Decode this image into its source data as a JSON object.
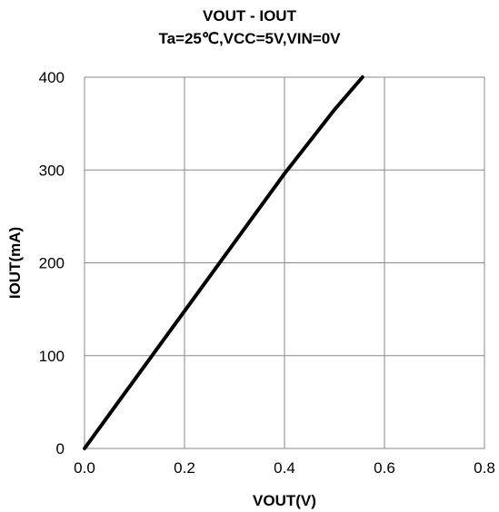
{
  "chart_data": {
    "type": "line",
    "title": "VOUT - IOUT",
    "subtitle": "Ta=25℃,VCC=5V,VIN=0V",
    "xlabel": "VOUT(V)",
    "ylabel": "IOUT(mA)",
    "xlim": [
      0,
      0.8
    ],
    "ylim": [
      0,
      400
    ],
    "xticks": [
      "0.0",
      "0.2",
      "0.4",
      "0.6",
      "0.8"
    ],
    "yticks": [
      "0",
      "100",
      "200",
      "300",
      "400"
    ],
    "grid": true,
    "legend": "none",
    "series": [
      {
        "color": "#000000",
        "x": [
          0.0,
          0.1,
          0.2,
          0.3,
          0.4,
          0.5,
          0.556
        ],
        "y": [
          0,
          74,
          148,
          222,
          296,
          365,
          400
        ]
      }
    ]
  }
}
